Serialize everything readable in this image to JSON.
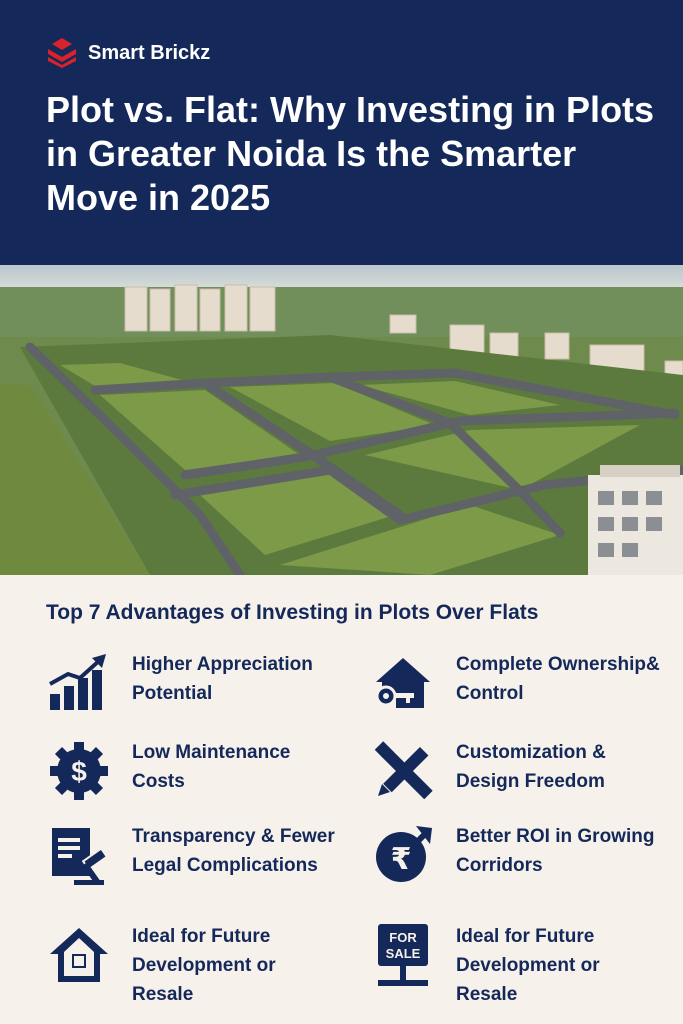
{
  "brand": {
    "name": "Smart Brickz",
    "logo_icon": "stacked-brick-logo",
    "accent": "#d8232a"
  },
  "header": {
    "title": "Plot vs. Flat: Why Investing in Plots in Greater Noida Is the Smarter Move in 2025",
    "bg": "#14285a"
  },
  "photo": {
    "description_icon": "aerial-plots-photo"
  },
  "advantages": {
    "title": "Top 7 Advantages of Investing in Plots Over Flats",
    "items": [
      {
        "label": "Higher Appreciation Potential",
        "icon": "growth-chart-icon"
      },
      {
        "label": "Complete Ownership& Control",
        "icon": "house-key-icon"
      },
      {
        "label": "Low Maintenance Costs",
        "icon": "gear-dollar-icon"
      },
      {
        "label": "Customization & Design Freedom",
        "icon": "pencil-ruler-icon"
      },
      {
        "label": "Transparency & Fewer Legal Complications",
        "icon": "document-gavel-icon"
      },
      {
        "label": "Better ROI in Growing Corridors",
        "icon": "rupee-arrow-icon"
      },
      {
        "label": "Ideal for Future Development or Resale",
        "icon": "home-icon"
      },
      {
        "label": "Ideal for Future Development or Resale",
        "icon": "for-sale-sign-icon",
        "sign_text": "FOR SALE"
      }
    ]
  },
  "colors": {
    "navy": "#14285a",
    "cream": "#f6f1ea"
  }
}
